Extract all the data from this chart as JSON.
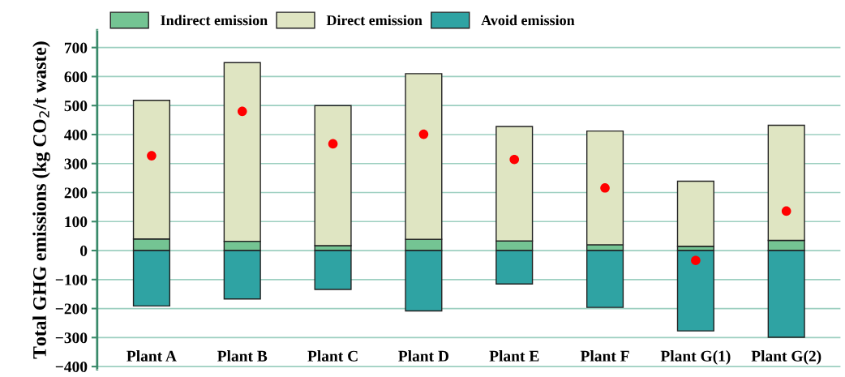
{
  "chart_data": {
    "type": "bar",
    "stacked": true,
    "ylabel": "Total GHG emissions (kg CO$_{2}$/t waste)",
    "categories": [
      "Plant A",
      "Plant B",
      "Plant C",
      "Plant D",
      "Plant E",
      "Plant F",
      "Plant G(1)",
      "Plant G(2)"
    ],
    "series": [
      {
        "name": "Indirect emission",
        "color": "#74c493",
        "values": [
          40,
          32,
          17,
          39,
          33,
          20,
          15,
          35
        ]
      },
      {
        "name": "Direct emission",
        "color": "#dfe5c2",
        "values": [
          478,
          616,
          483,
          571,
          395,
          392,
          224,
          397
        ]
      },
      {
        "name": "Avoid emission",
        "color": "#2fa3a3",
        "values": [
          -191,
          -167,
          -134,
          -208,
          -115,
          -196,
          -277,
          -299
        ]
      },
      {
        "type": "scatter",
        "color": "#ff0000",
        "marker": "circle",
        "x": [
          "Plant A",
          "Plant B",
          "Plant C",
          "Plant D",
          "Plant E",
          "Plant F",
          "Plant G(1)",
          "Plant G(2)"
        ],
        "values": [
          327,
          480,
          368,
          401,
          314,
          216,
          -34,
          136
        ]
      }
    ],
    "ylim": [
      -410,
      760
    ],
    "yticks": [
      {
        "value": -400,
        "label": "−400"
      },
      {
        "value": -300,
        "label": "−300"
      },
      {
        "value": -200,
        "label": "−200"
      },
      {
        "value": -100,
        "label": "−100"
      },
      0,
      100,
      200,
      300,
      400,
      500,
      600,
      700
    ],
    "grid": "y",
    "legend": "top"
  }
}
